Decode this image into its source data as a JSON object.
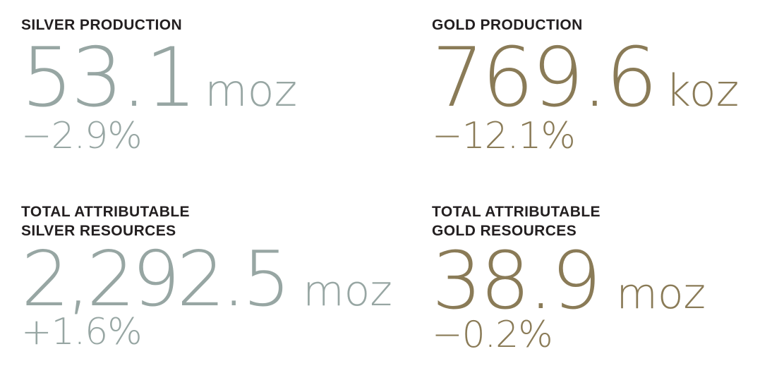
{
  "stats": {
    "silver_production": {
      "label_line1": "SILVER PRODUCTION",
      "value": "53.1",
      "unit": "moz",
      "change": "−2.9%"
    },
    "gold_production": {
      "label_line1": "GOLD PRODUCTION",
      "value": "769.6",
      "unit": "koz",
      "change": "−12.1%"
    },
    "silver_resources": {
      "label_line1": "TOTAL ATTRIBUTABLE",
      "label_line2": "SILVER RESOURCES",
      "value": "2,292.5",
      "unit": "moz",
      "change": "+1.6%"
    },
    "gold_resources": {
      "label_line1": "TOTAL ATTRIBUTABLE",
      "label_line2": "GOLD RESOURCES",
      "value": "38.9",
      "unit": "moz",
      "change": "−0.2%"
    }
  },
  "colors": {
    "label": "#231f20",
    "silver": "#97a6a3",
    "gold": "#8a7b57"
  }
}
